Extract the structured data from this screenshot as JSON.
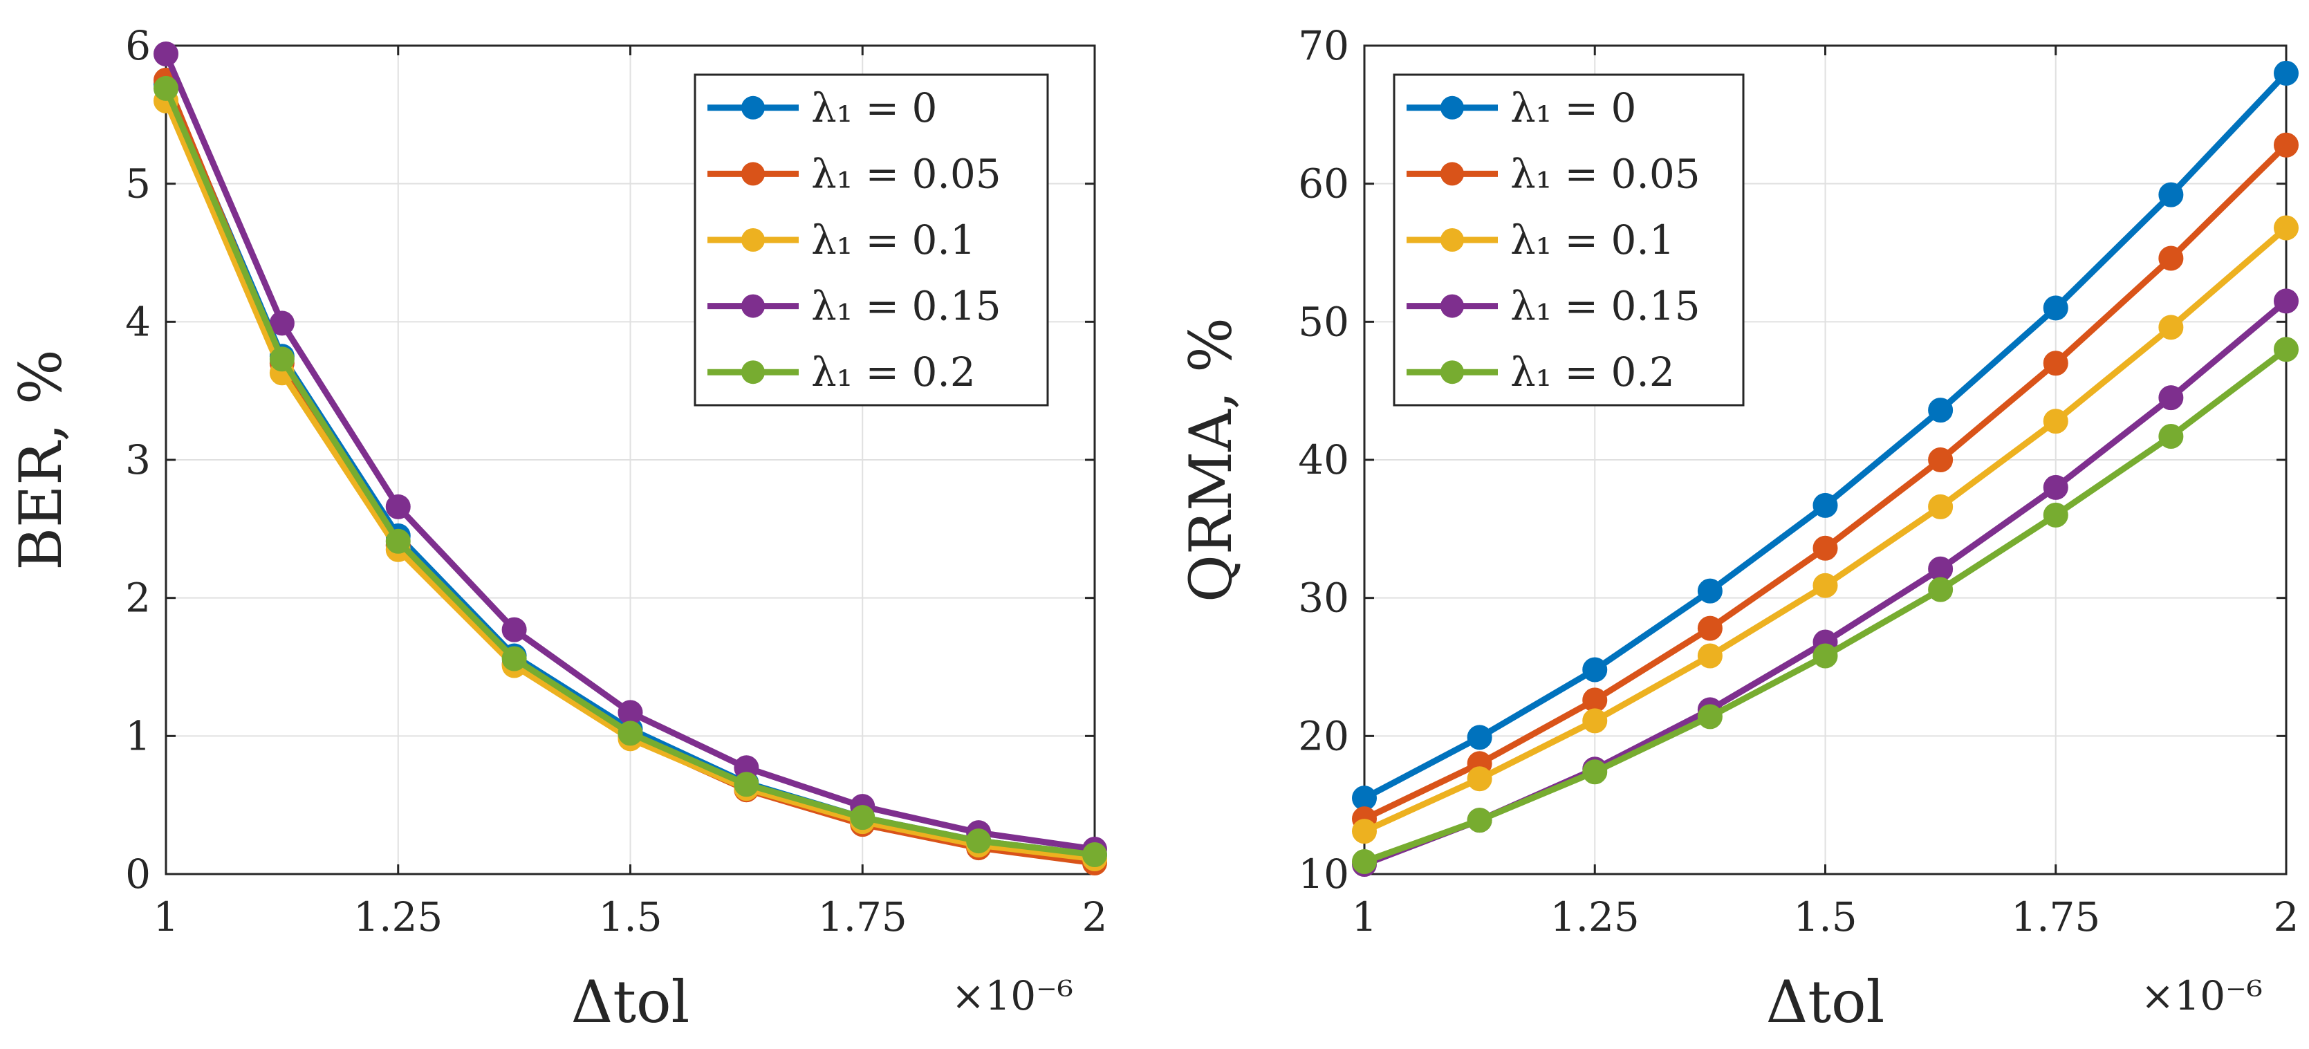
{
  "chart_data": [
    {
      "type": "line",
      "xlabel": "Δtol",
      "ylabel": "BER, %",
      "x_multiplier": "×10⁻⁶",
      "x": [
        1,
        1.125,
        1.25,
        1.375,
        1.5,
        1.625,
        1.75,
        1.875,
        2
      ],
      "xlim": [
        1,
        2
      ],
      "ylim": [
        0,
        6
      ],
      "xticks": [
        1,
        1.25,
        1.5,
        1.75,
        2
      ],
      "xtick_labels": [
        "1",
        "1.25",
        "1.5",
        "1.75",
        "2"
      ],
      "yticks": [
        0,
        1,
        2,
        3,
        4,
        5,
        6
      ],
      "ytick_labels": [
        "0",
        "1",
        "2",
        "3",
        "4",
        "5",
        "6"
      ],
      "grid": true,
      "legend_position": "top-right",
      "series": [
        {
          "name": "λ₁ = 0",
          "color": "#0072BD",
          "values": [
            5.72,
            3.75,
            2.45,
            1.58,
            1.05,
            0.66,
            0.41,
            0.24,
            0.14
          ]
        },
        {
          "name": "λ₁ = 0.05",
          "color": "#D95319",
          "values": [
            5.75,
            3.7,
            2.38,
            1.52,
            0.99,
            0.61,
            0.36,
            0.19,
            0.08
          ]
        },
        {
          "name": "λ₁ = 0.1",
          "color": "#EDB120",
          "values": [
            5.6,
            3.63,
            2.35,
            1.51,
            0.98,
            0.62,
            0.38,
            0.21,
            0.11
          ]
        },
        {
          "name": "λ₁ = 0.15",
          "color": "#7E2F8E",
          "values": [
            5.94,
            3.99,
            2.66,
            1.77,
            1.17,
            0.77,
            0.49,
            0.3,
            0.18
          ]
        },
        {
          "name": "λ₁ = 0.2",
          "color": "#77AC30",
          "values": [
            5.69,
            3.73,
            2.41,
            1.56,
            1.02,
            0.65,
            0.41,
            0.24,
            0.14
          ]
        }
      ]
    },
    {
      "type": "line",
      "xlabel": "Δtol",
      "ylabel": "QRMA, %",
      "x_multiplier": "×10⁻⁶",
      "x": [
        1,
        1.125,
        1.25,
        1.375,
        1.5,
        1.625,
        1.75,
        1.875,
        2
      ],
      "xlim": [
        1,
        2
      ],
      "ylim": [
        10,
        70
      ],
      "xticks": [
        1,
        1.25,
        1.5,
        1.75,
        2
      ],
      "xtick_labels": [
        "1",
        "1.25",
        "1.5",
        "1.75",
        "2"
      ],
      "yticks": [
        10,
        20,
        30,
        40,
        50,
        60,
        70
      ],
      "ytick_labels": [
        "10",
        "20",
        "30",
        "40",
        "50",
        "60",
        "70"
      ],
      "grid": true,
      "legend_position": "top-left",
      "series": [
        {
          "name": "λ₁ = 0",
          "color": "#0072BD",
          "values": [
            15.5,
            19.9,
            24.8,
            30.5,
            36.7,
            43.6,
            51.0,
            59.2,
            68.0
          ]
        },
        {
          "name": "λ₁ = 0.05",
          "color": "#D95319",
          "values": [
            14.0,
            18.0,
            22.6,
            27.8,
            33.6,
            40.0,
            47.0,
            54.6,
            62.8
          ]
        },
        {
          "name": "λ₁ = 0.1",
          "color": "#EDB120",
          "values": [
            13.1,
            16.9,
            21.1,
            25.8,
            30.9,
            36.6,
            42.8,
            49.6,
            56.8
          ]
        },
        {
          "name": "λ₁ = 0.15",
          "color": "#7E2F8E",
          "values": [
            10.7,
            13.9,
            17.6,
            21.9,
            26.8,
            32.1,
            38.0,
            44.5,
            51.5
          ]
        },
        {
          "name": "λ₁ = 0.2",
          "color": "#77AC30",
          "values": [
            10.9,
            13.9,
            17.4,
            21.4,
            25.8,
            30.6,
            36.0,
            41.7,
            48.0
          ]
        }
      ]
    }
  ]
}
